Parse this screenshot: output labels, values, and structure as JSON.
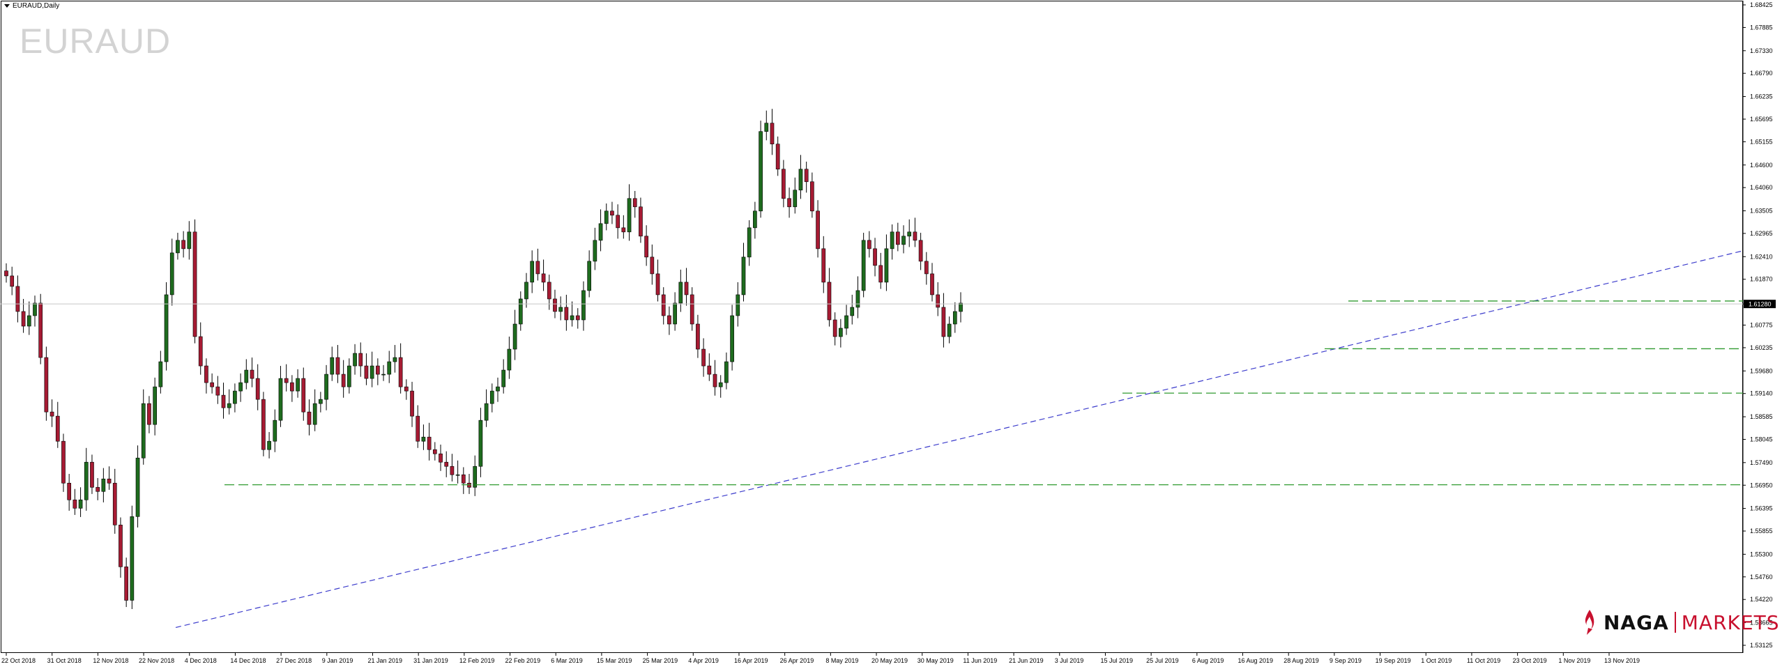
{
  "header": {
    "title": "EURAUD,Daily"
  },
  "watermark": "EURAUD",
  "brand": {
    "name_left": "NAGA",
    "name_right": "MARKETS",
    "accent": "#c8102e"
  },
  "colors": {
    "bull": "#1e6b1e",
    "bear": "#a61b33",
    "trendline": "#3c3ccc",
    "support": "#2f9a2f",
    "grid": "#c8c8c8"
  },
  "chart_data": {
    "type": "candlestick",
    "symbol": "EURAUD",
    "timeframe": "Daily",
    "y_ticks": [
      "1.68425",
      "1.67885",
      "1.67330",
      "1.66790",
      "1.66235",
      "1.65695",
      "1.65155",
      "1.64600",
      "1.64060",
      "1.63505",
      "1.62965",
      "1.62410",
      "1.61870",
      "1.61280",
      "1.60775",
      "1.60235",
      "1.59680",
      "1.59140",
      "1.58585",
      "1.58045",
      "1.57490",
      "1.56950",
      "1.56395",
      "1.55855",
      "1.55300",
      "1.54760",
      "1.54220",
      "1.53665",
      "1.53125"
    ],
    "ylim": [
      1.53125,
      1.68425
    ],
    "x_ticks": [
      "22 Oct 2018",
      "31 Oct 2018",
      "12 Nov 2018",
      "22 Nov 2018",
      "4 Dec 2018",
      "14 Dec 2018",
      "27 Dec 2018",
      "9 Jan 2019",
      "21 Jan 2019",
      "31 Jan 2019",
      "12 Feb 2019",
      "22 Feb 2019",
      "6 Mar 2019",
      "15 Mar 2019",
      "25 Mar 2019",
      "4 Apr 2019",
      "16 Apr 2019",
      "26 Apr 2019",
      "8 May 2019",
      "20 May 2019",
      "30 May 2019",
      "11 Jun 2019",
      "21 Jun 2019",
      "3 Jul 2019",
      "15 Jul 2019",
      "25 Jul 2019",
      "6 Aug 2019",
      "16 Aug 2019",
      "28 Aug 2019",
      "9 Sep 2019",
      "19 Sep 2019",
      "1 Oct 2019",
      "11 Oct 2019",
      "23 Oct 2019",
      "1 Nov 2019",
      "13 Nov 2019"
    ],
    "current_price": "1.61280",
    "closes": [
      1.6195,
      1.617,
      1.611,
      1.6075,
      1.61,
      1.613,
      1.6,
      1.587,
      1.586,
      1.58,
      1.57,
      1.566,
      1.564,
      1.566,
      1.575,
      1.569,
      1.568,
      1.571,
      1.57,
      1.56,
      1.55,
      1.542,
      1.562,
      1.576,
      1.589,
      1.584,
      1.593,
      1.599,
      1.615,
      1.625,
      1.628,
      1.626,
      1.63,
      1.605,
      1.598,
      1.594,
      1.593,
      1.591,
      1.588,
      1.589,
      1.592,
      1.594,
      1.597,
      1.595,
      1.59,
      1.578,
      1.58,
      1.585,
      1.595,
      1.594,
      1.592,
      1.595,
      1.587,
      1.584,
      1.589,
      1.59,
      1.596,
      1.6,
      1.596,
      1.593,
      1.598,
      1.601,
      1.598,
      1.595,
      1.598,
      1.596,
      1.596,
      1.599,
      1.6,
      1.593,
      1.592,
      1.586,
      1.58,
      1.581,
      1.578,
      1.577,
      1.575,
      1.574,
      1.572,
      1.572,
      1.57,
      1.569,
      1.574,
      1.585,
      1.589,
      1.592,
      1.593,
      1.597,
      1.602,
      1.608,
      1.614,
      1.618,
      1.623,
      1.62,
      1.618,
      1.614,
      1.611,
      1.612,
      1.609,
      1.61,
      1.609,
      1.616,
      1.623,
      1.628,
      1.632,
      1.635,
      1.634,
      1.631,
      1.63,
      1.638,
      1.636,
      1.629,
      1.624,
      1.62,
      1.615,
      1.61,
      1.608,
      1.613,
      1.618,
      1.615,
      1.608,
      1.602,
      1.598,
      1.596,
      1.593,
      1.594,
      1.599,
      1.61,
      1.615,
      1.624,
      1.631,
      1.635,
      1.654,
      1.656,
      1.651,
      1.645,
      1.638,
      1.636,
      1.64,
      1.645,
      1.642,
      1.635,
      1.626,
      1.618,
      1.609,
      1.605,
      1.607,
      1.61,
      1.612,
      1.616,
      1.628,
      1.626,
      1.622,
      1.618,
      1.626,
      1.63,
      1.627,
      1.629,
      1.63,
      1.628,
      1.623,
      1.62,
      1.615,
      1.612,
      1.605,
      1.608,
      1.611,
      1.613
    ]
  }
}
